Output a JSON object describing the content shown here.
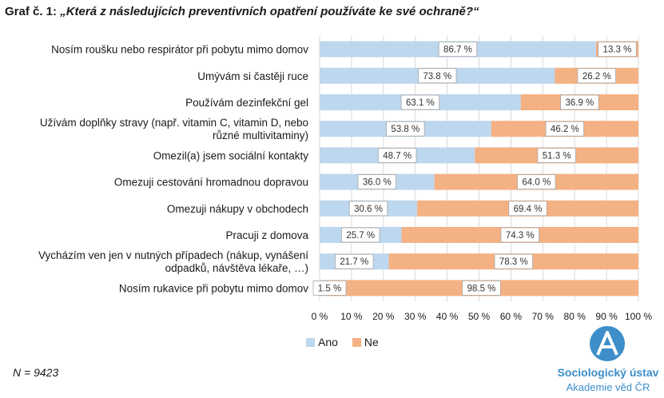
{
  "title": {
    "prefix": "Graf č. 1: ",
    "question": "„Která z následujících preventivních opatření používáte ke své ochraně?“"
  },
  "note": "N = 9423",
  "logo": {
    "name": "Sociologický ústav",
    "sub": "Akademie věd ČR",
    "icon": "letter-a-circle-logo"
  },
  "colors": {
    "ano": "#bdd7ee",
    "ne": "#f4b183",
    "grid": "#d9d9d9"
  },
  "chart_data": {
    "type": "bar",
    "orientation": "horizontal",
    "stacked": true,
    "categories": [
      [
        "Nosím roušku nebo respirátor při pobytu mimo domov"
      ],
      [
        "Umývám si častěji ruce"
      ],
      [
        "Používám dezinfekční gel"
      ],
      [
        "Užívám doplňky stravy (např. vitamin C, vitamin D, nebo",
        "různé multivitaminy)"
      ],
      [
        "Omezil(a) jsem sociální kontakty"
      ],
      [
        "Omezuji cestování hromadnou dopravou"
      ],
      [
        "Omezuji nákupy v obchodech"
      ],
      [
        "Pracuji z domova"
      ],
      [
        "Vycházím ven jen v nutných případech (nákup, vynášení",
        "odpadků, návštěva lékaře, …)"
      ],
      [
        "Nosím rukavice při pobytu mimo domov"
      ]
    ],
    "series": [
      {
        "name": "Ano",
        "values": [
          86.7,
          73.8,
          63.1,
          53.8,
          48.7,
          36.0,
          30.6,
          25.7,
          21.7,
          1.5
        ]
      },
      {
        "name": "Ne",
        "values": [
          13.3,
          26.2,
          36.9,
          46.2,
          51.3,
          64.0,
          69.4,
          74.3,
          78.3,
          98.5
        ]
      }
    ],
    "data_labels": [
      [
        "86.7 %",
        "73.8 %",
        "63.1 %",
        "53.8 %",
        "48.7 %",
        "36.0 %",
        "30.6 %",
        "25.7 %",
        "21.7 %",
        "1.5 %"
      ],
      [
        "13.3 %",
        "26.2 %",
        "36.9 %",
        "46.2 %",
        "51.3 %",
        "64.0 %",
        "69.4 %",
        "74.3 %",
        "78.3 %",
        "98.5 %"
      ]
    ],
    "xlim": [
      0,
      100
    ],
    "xticks": [
      "0 %",
      "10 %",
      "20 %",
      "30 %",
      "40 %",
      "50 %",
      "60 %",
      "70 %",
      "80 %",
      "90 %",
      "100 %"
    ],
    "grid": true,
    "legend_position": "bottom"
  }
}
